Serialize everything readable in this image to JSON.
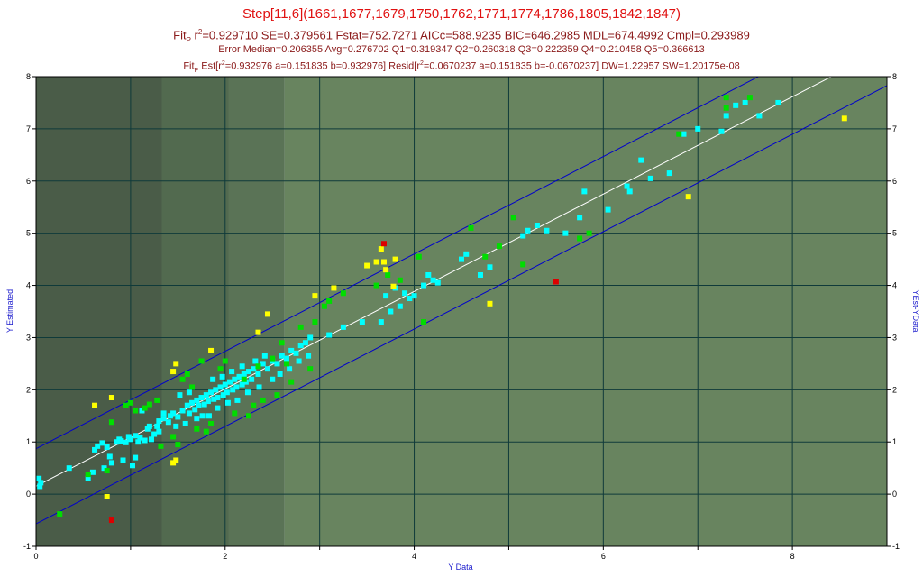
{
  "titles": {
    "main": "Step[11,6](1661,1677,1679,1750,1762,1771,1774,1786,1805,1842,1847)",
    "fit_prefix": "Fit",
    "fit_sub": "P",
    "fit_r": " r",
    "fit_sup": "2",
    "fit_rest": "=0.929710 SE=0.379561 Fstat=752.7271 AICc=588.9235 BIC=646.2985 MDL=674.4992 Cmpl=0.293989",
    "error": "Error Median=0.206355 Avg=0.276702 Q1=0.319347 Q2=0.260318 Q3=0.222359 Q4=0.210458 Q5=0.366613",
    "est_prefix": "Fit",
    "est_sub": "P",
    "est_a": " Est[r",
    "est_sup1": "2",
    "est_b": "=0.932976 a=0.151835 b=0.932976] Resid[r",
    "est_sup2": "2",
    "est_c": "=0.0670237 a=0.151835 b=-0.0670237] DW=1.22957 SW=1.20175e-08"
  },
  "chart_data": {
    "type": "scatter",
    "xlabel": "Y Data",
    "ylabel": "Y Estimated",
    "ylabel_right": "YEst-YData",
    "xlim": [
      0,
      9
    ],
    "ylim": [
      -1,
      8
    ],
    "x_ticks": [
      0,
      2,
      4,
      6,
      8
    ],
    "y_ticks": [
      -1,
      0,
      1,
      2,
      3,
      4,
      5,
      6,
      7,
      8
    ],
    "grid": true,
    "colors": {
      "cyan": "#00ffff",
      "green": "#00dd00",
      "yellow": "#ffff00",
      "red": "#dd0000",
      "fit_line": "#ffffff",
      "band": "#0000cc"
    },
    "fit_line": {
      "a": 0.151835,
      "b": 0.932976
    },
    "band": {
      "offset": 0.72
    },
    "quantile_bands_x": [
      1.33,
      2.04,
      2.63
    ],
    "series": [
      {
        "color": "cyan",
        "points": [
          [
            0.03,
            0.3
          ],
          [
            0.04,
            0.15
          ],
          [
            0.05,
            0.22
          ],
          [
            0.35,
            0.5
          ],
          [
            0.6,
            0.42
          ],
          [
            0.62,
            0.85
          ],
          [
            0.65,
            0.92
          ],
          [
            0.7,
            0.98
          ],
          [
            0.75,
            0.9
          ],
          [
            0.78,
            0.72
          ],
          [
            0.8,
            0.6
          ],
          [
            0.85,
            1.0
          ],
          [
            0.88,
            1.05
          ],
          [
            0.9,
            1.02
          ],
          [
            0.95,
            0.99
          ],
          [
            0.98,
            1.1
          ],
          [
            1.0,
            1.05
          ],
          [
            1.02,
            0.55
          ],
          [
            1.05,
            1.12
          ],
          [
            1.08,
            1.0
          ],
          [
            1.1,
            1.08
          ],
          [
            1.15,
            1.03
          ],
          [
            1.2,
            1.3
          ],
          [
            1.25,
            1.15
          ],
          [
            1.3,
            1.4
          ],
          [
            1.35,
            1.45
          ],
          [
            1.4,
            1.38
          ],
          [
            1.42,
            1.5
          ],
          [
            1.45,
            1.55
          ],
          [
            1.5,
            1.48
          ],
          [
            1.55,
            1.6
          ],
          [
            1.6,
            1.7
          ],
          [
            1.62,
            1.55
          ],
          [
            1.65,
            1.75
          ],
          [
            1.68,
            1.62
          ],
          [
            1.7,
            1.8
          ],
          [
            1.72,
            1.7
          ],
          [
            1.75,
            1.85
          ],
          [
            1.78,
            1.72
          ],
          [
            1.8,
            1.9
          ],
          [
            1.82,
            1.78
          ],
          [
            1.85,
            1.95
          ],
          [
            1.88,
            1.82
          ],
          [
            1.9,
            2.0
          ],
          [
            1.92,
            1.85
          ],
          [
            1.95,
            2.05
          ],
          [
            1.98,
            1.9
          ],
          [
            2.0,
            2.1
          ],
          [
            2.02,
            1.95
          ],
          [
            2.05,
            2.15
          ],
          [
            2.08,
            2.0
          ],
          [
            2.1,
            2.2
          ],
          [
            2.12,
            2.05
          ],
          [
            2.15,
            2.25
          ],
          [
            2.18,
            2.1
          ],
          [
            2.2,
            2.3
          ],
          [
            2.22,
            2.15
          ],
          [
            2.25,
            2.35
          ],
          [
            2.28,
            2.2
          ],
          [
            2.3,
            2.4
          ],
          [
            2.35,
            2.3
          ],
          [
            2.4,
            2.5
          ],
          [
            2.45,
            2.4
          ],
          [
            2.5,
            2.55
          ],
          [
            2.55,
            2.5
          ],
          [
            2.6,
            2.65
          ],
          [
            2.65,
            2.6
          ],
          [
            2.7,
            2.75
          ],
          [
            2.75,
            2.7
          ],
          [
            2.8,
            2.85
          ],
          [
            2.85,
            2.9
          ],
          [
            2.9,
            3.0
          ],
          [
            3.1,
            3.05
          ],
          [
            3.25,
            3.2
          ],
          [
            3.45,
            3.3
          ],
          [
            3.65,
            3.3
          ],
          [
            3.7,
            3.8
          ],
          [
            3.75,
            3.5
          ],
          [
            3.8,
            3.95
          ],
          [
            3.85,
            3.6
          ],
          [
            3.9,
            3.85
          ],
          [
            3.95,
            3.75
          ],
          [
            4.0,
            3.8
          ],
          [
            4.1,
            4.0
          ],
          [
            4.15,
            4.2
          ],
          [
            4.2,
            4.1
          ],
          [
            4.25,
            4.05
          ],
          [
            4.5,
            4.5
          ],
          [
            4.55,
            4.6
          ],
          [
            4.7,
            4.2
          ],
          [
            4.8,
            4.35
          ],
          [
            5.15,
            4.95
          ],
          [
            5.2,
            5.05
          ],
          [
            5.3,
            5.15
          ],
          [
            5.4,
            5.05
          ],
          [
            5.6,
            5.0
          ],
          [
            5.75,
            5.3
          ],
          [
            5.8,
            5.8
          ],
          [
            6.05,
            5.45
          ],
          [
            6.25,
            5.9
          ],
          [
            6.28,
            5.8
          ],
          [
            6.4,
            6.4
          ],
          [
            6.5,
            6.05
          ],
          [
            6.7,
            6.15
          ],
          [
            6.85,
            6.9
          ],
          [
            7.0,
            7.0
          ],
          [
            7.25,
            6.95
          ],
          [
            7.3,
            7.25
          ],
          [
            7.4,
            7.45
          ],
          [
            7.5,
            7.5
          ],
          [
            7.65,
            7.25
          ],
          [
            7.85,
            7.5
          ],
          [
            1.12,
            1.6
          ],
          [
            1.35,
            1.55
          ],
          [
            1.3,
            1.2
          ],
          [
            1.52,
            1.9
          ],
          [
            1.48,
            1.3
          ],
          [
            1.58,
            1.35
          ],
          [
            1.62,
            1.95
          ],
          [
            1.7,
            1.45
          ],
          [
            1.76,
            1.5
          ],
          [
            1.83,
            1.5
          ],
          [
            1.92,
            1.65
          ],
          [
            1.87,
            2.2
          ],
          [
            1.97,
            2.25
          ],
          [
            2.03,
            1.75
          ],
          [
            2.07,
            2.35
          ],
          [
            2.13,
            1.8
          ],
          [
            2.18,
            2.45
          ],
          [
            2.24,
            1.95
          ],
          [
            2.32,
            2.55
          ],
          [
            2.36,
            2.05
          ],
          [
            2.42,
            2.65
          ],
          [
            2.5,
            2.2
          ],
          [
            2.58,
            2.3
          ],
          [
            2.68,
            2.4
          ],
          [
            2.78,
            2.55
          ],
          [
            2.88,
            2.65
          ],
          [
            0.55,
            0.3
          ],
          [
            0.72,
            0.5
          ],
          [
            0.92,
            0.65
          ],
          [
            1.05,
            0.7
          ],
          [
            1.18,
            1.25
          ],
          [
            1.22,
            1.05
          ],
          [
            1.28,
            1.3
          ]
        ]
      },
      {
        "color": "green",
        "points": [
          [
            0.25,
            -0.38
          ],
          [
            0.8,
            1.38
          ],
          [
            0.95,
            1.7
          ],
          [
            1.0,
            1.75
          ],
          [
            1.05,
            1.6
          ],
          [
            1.15,
            1.65
          ],
          [
            1.2,
            1.72
          ],
          [
            1.28,
            1.8
          ],
          [
            1.32,
            0.92
          ],
          [
            1.45,
            1.1
          ],
          [
            1.5,
            0.95
          ],
          [
            1.55,
            2.2
          ],
          [
            1.6,
            2.3
          ],
          [
            1.7,
            1.25
          ],
          [
            1.75,
            2.55
          ],
          [
            1.8,
            1.2
          ],
          [
            1.85,
            1.35
          ],
          [
            1.95,
            2.4
          ],
          [
            2.0,
            2.55
          ],
          [
            2.1,
            1.55
          ],
          [
            2.2,
            2.2
          ],
          [
            2.3,
            1.7
          ],
          [
            2.35,
            2.45
          ],
          [
            2.4,
            1.8
          ],
          [
            2.5,
            2.6
          ],
          [
            2.55,
            1.9
          ],
          [
            2.65,
            2.5
          ],
          [
            2.7,
            2.15
          ],
          [
            2.8,
            3.2
          ],
          [
            2.9,
            2.4
          ],
          [
            2.95,
            3.3
          ],
          [
            3.05,
            3.6
          ],
          [
            3.1,
            3.7
          ],
          [
            3.25,
            3.85
          ],
          [
            3.6,
            4.0
          ],
          [
            3.72,
            4.2
          ],
          [
            3.85,
            4.1
          ],
          [
            4.05,
            4.55
          ],
          [
            4.1,
            3.3
          ],
          [
            4.6,
            5.1
          ],
          [
            4.75,
            4.55
          ],
          [
            4.9,
            4.75
          ],
          [
            5.05,
            5.3
          ],
          [
            5.15,
            4.4
          ],
          [
            5.75,
            4.9
          ],
          [
            5.85,
            5.0
          ],
          [
            6.8,
            6.9
          ],
          [
            7.3,
            7.6
          ],
          [
            7.3,
            7.4
          ],
          [
            7.55,
            7.6
          ],
          [
            0.75,
            0.45
          ],
          [
            0.55,
            0.38
          ],
          [
            1.65,
            2.05
          ],
          [
            2.6,
            2.9
          ],
          [
            2.25,
            1.5
          ]
        ]
      },
      {
        "color": "yellow",
        "points": [
          [
            0.62,
            1.7
          ],
          [
            0.8,
            1.85
          ],
          [
            0.75,
            -0.05
          ],
          [
            1.45,
            2.35
          ],
          [
            1.48,
            2.5
          ],
          [
            1.45,
            0.6
          ],
          [
            1.48,
            0.65
          ],
          [
            1.85,
            2.75
          ],
          [
            2.35,
            3.1
          ],
          [
            2.45,
            3.45
          ],
          [
            2.95,
            3.8
          ],
          [
            3.15,
            3.95
          ],
          [
            3.5,
            4.38
          ],
          [
            3.6,
            4.45
          ],
          [
            3.65,
            4.7
          ],
          [
            3.68,
            4.45
          ],
          [
            3.7,
            4.3
          ],
          [
            3.78,
            3.98
          ],
          [
            3.8,
            4.5
          ],
          [
            4.8,
            3.65
          ],
          [
            6.9,
            5.7
          ],
          [
            8.55,
            7.2
          ]
        ]
      },
      {
        "color": "red",
        "points": [
          [
            0.8,
            -0.5
          ],
          [
            3.68,
            4.8
          ],
          [
            5.5,
            4.07
          ]
        ]
      }
    ]
  }
}
